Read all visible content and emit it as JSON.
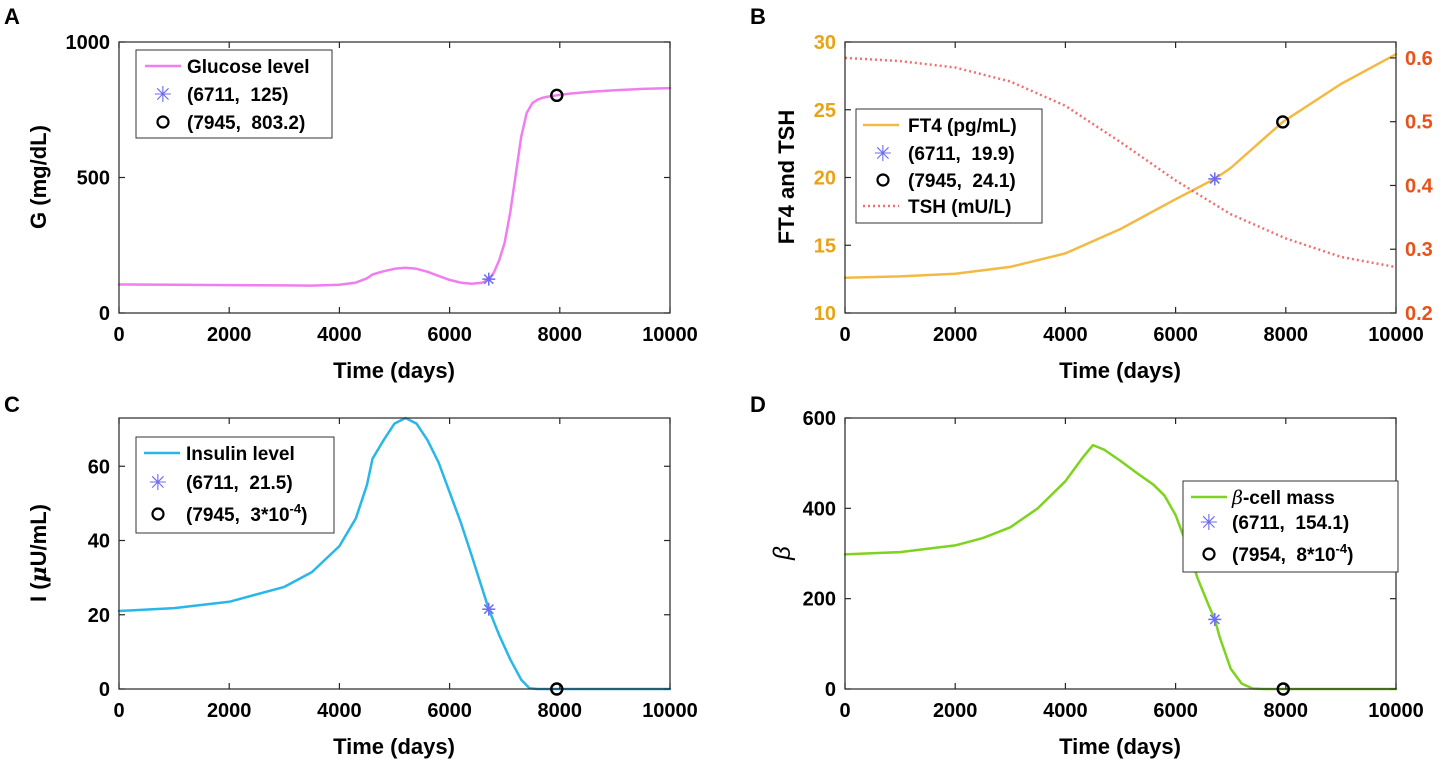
{
  "chart_data": [
    {
      "panel_label": "A",
      "type": "line",
      "xlabel": "Time (days)",
      "ylabel": "G (mg/dL)",
      "xlim": [
        0,
        10000
      ],
      "ylim": [
        0,
        1000
      ],
      "xticks": [
        0,
        2000,
        4000,
        6000,
        8000,
        10000
      ],
      "xtick_labels": [
        "0",
        "2000",
        "4000",
        "6000",
        "8000",
        "10000"
      ],
      "yticks": [
        0,
        500,
        1000
      ],
      "ytick_labels": [
        "0",
        "500",
        "1000"
      ],
      "legend_position": "top-left",
      "series": [
        {
          "name": "Glucose level",
          "color": "#f07ef0",
          "style": "solid",
          "x": [
            0,
            1000,
            2000,
            3000,
            3500,
            4000,
            4300,
            4500,
            4600,
            4800,
            5000,
            5200,
            5400,
            5600,
            5800,
            6000,
            6200,
            6400,
            6600,
            6711,
            6800,
            6900,
            7000,
            7100,
            7200,
            7300,
            7400,
            7500,
            7600,
            7700,
            7800,
            7945,
            8200,
            8600,
            9000,
            9500,
            10000
          ],
          "y": [
            105,
            104,
            103,
            102,
            101,
            104,
            112,
            128,
            142,
            154,
            163,
            167,
            163,
            152,
            137,
            122,
            112,
            108,
            112,
            125,
            148,
            195,
            260,
            370,
            510,
            650,
            738,
            774,
            788,
            795,
            799,
            803.2,
            810,
            817,
            822,
            827,
            830
          ]
        }
      ],
      "markers": [
        {
          "label": "(6711,  125)",
          "x": 6711,
          "y": 125,
          "shape": "asterisk",
          "color": "#6b6bf2"
        },
        {
          "label": "(7945,  803.2)",
          "x": 7945,
          "y": 803.2,
          "shape": "circle",
          "color": "#000000"
        }
      ]
    },
    {
      "panel_label": "B",
      "type": "line",
      "xlabel": "Time (days)",
      "ylabel": "FT4 and TSH",
      "xlim": [
        0,
        10000
      ],
      "ylim": [
        10,
        30
      ],
      "xticks": [
        0,
        2000,
        4000,
        6000,
        8000,
        10000
      ],
      "xtick_labels": [
        "0",
        "2000",
        "4000",
        "6000",
        "8000",
        "10000"
      ],
      "yticks": [
        10,
        15,
        20,
        25,
        30
      ],
      "ytick_labels": [
        "10",
        "15",
        "20",
        "25",
        "30"
      ],
      "ytick_color": "#e8a317",
      "y2lim": [
        0.2,
        0.625
      ],
      "y2ticks": [
        0.2,
        0.3,
        0.4,
        0.5,
        0.6
      ],
      "y2tick_labels": [
        "0.2",
        "0.3",
        "0.4",
        "0.5",
        "0.6"
      ],
      "y2tick_color": "#e8521a",
      "legend_position": "center-left",
      "series": [
        {
          "name": "FT4 (pg/mL)",
          "color": "#f4b942",
          "style": "solid",
          "axis": "left",
          "x": [
            0,
            1000,
            2000,
            3000,
            4000,
            5000,
            6000,
            6711,
            7000,
            7945,
            9000,
            10000
          ],
          "y": [
            12.6,
            12.7,
            12.9,
            13.4,
            14.4,
            16.2,
            18.4,
            19.9,
            20.7,
            24.1,
            26.9,
            29.1
          ]
        },
        {
          "name": "TSH (mU/L)",
          "color": "#f07070",
          "style": "dotted",
          "axis": "right",
          "x": [
            0,
            1000,
            2000,
            3000,
            4000,
            5000,
            6000,
            7000,
            8000,
            9000,
            10000
          ],
          "y": [
            0.6,
            0.595,
            0.585,
            0.563,
            0.525,
            0.468,
            0.408,
            0.355,
            0.317,
            0.288,
            0.272
          ]
        }
      ],
      "markers": [
        {
          "label": "(6711,  19.9)",
          "x": 6711,
          "y": 19.9,
          "shape": "asterisk",
          "color": "#6b6bf2"
        },
        {
          "label": "(7945,  24.1)",
          "x": 7945,
          "y": 24.1,
          "shape": "circle",
          "color": "#000000"
        }
      ]
    },
    {
      "panel_label": "C",
      "type": "line",
      "xlabel": "Time (days)",
      "ylabel_prefix": "I (",
      "ylabel_mu": "μ",
      "ylabel_suffix": "U/mL)",
      "xlim": [
        0,
        10000
      ],
      "ylim": [
        0,
        73
      ],
      "xticks": [
        0,
        2000,
        4000,
        6000,
        8000,
        10000
      ],
      "xtick_labels": [
        "0",
        "2000",
        "4000",
        "6000",
        "8000",
        "10000"
      ],
      "yticks": [
        0,
        20,
        40,
        60
      ],
      "ytick_labels": [
        "0",
        "20",
        "40",
        "60"
      ],
      "legend_position": "top-left",
      "series": [
        {
          "name": "Insulin level",
          "color": "#29b6e8",
          "style": "solid",
          "x": [
            0,
            1000,
            2000,
            3000,
            3500,
            4000,
            4300,
            4500,
            4600,
            4800,
            5000,
            5200,
            5400,
            5600,
            5800,
            6000,
            6200,
            6400,
            6711,
            6900,
            7100,
            7300,
            7450,
            7600,
            8000,
            9000,
            10000
          ],
          "y": [
            21,
            21.8,
            23.5,
            27.5,
            31.5,
            38.5,
            46,
            55,
            62,
            67,
            71.5,
            73,
            71.5,
            67,
            61,
            53,
            45,
            36,
            21.5,
            14.5,
            8,
            2.5,
            0.2,
            0,
            0,
            0,
            0
          ]
        }
      ],
      "markers": [
        {
          "label_prefix": "(6711,  21.5)",
          "x": 6711,
          "y": 21.5,
          "shape": "asterisk",
          "color": "#6b6bf2"
        },
        {
          "label_prefix": "(7945,  3*10",
          "label_exp": "-4",
          "label_suffix": ")",
          "x": 7945,
          "y": 0.0003,
          "shape": "circle",
          "color": "#000000"
        }
      ]
    },
    {
      "panel_label": "D",
      "type": "line",
      "xlabel": "Time (days)",
      "ylabel": "β",
      "xlim": [
        0,
        10000
      ],
      "ylim": [
        0,
        600
      ],
      "xticks": [
        0,
        2000,
        4000,
        6000,
        8000,
        10000
      ],
      "xtick_labels": [
        "0",
        "2000",
        "4000",
        "6000",
        "8000",
        "10000"
      ],
      "yticks": [
        0,
        200,
        400,
        600
      ],
      "ytick_labels": [
        "0",
        "200",
        "400",
        "600"
      ],
      "legend_position": "top-right",
      "series": [
        {
          "name_prefix": "β",
          "name_suffix": "-cell mass",
          "color": "#7ed321",
          "style": "solid",
          "x": [
            0,
            1000,
            2000,
            2500,
            3000,
            3500,
            4000,
            4300,
            4500,
            4700,
            5000,
            5300,
            5600,
            5800,
            6000,
            6200,
            6400,
            6600,
            6711,
            6800,
            6900,
            7000,
            7200,
            7400,
            7600,
            8000,
            9000,
            10000
          ],
          "y": [
            298,
            303,
            318,
            334,
            358,
            400,
            460,
            510,
            540,
            530,
            505,
            478,
            452,
            428,
            385,
            320,
            245,
            185,
            154.1,
            115,
            80,
            45,
            12,
            1,
            0,
            0,
            0,
            0
          ]
        }
      ],
      "markers": [
        {
          "label_prefix": "(6711,  154.1)",
          "x": 6711,
          "y": 154.1,
          "shape": "asterisk",
          "color": "#6b6bf2"
        },
        {
          "label_prefix": "(7954,  8*10",
          "label_exp": "-4",
          "label_suffix": ")",
          "x": 7954,
          "y": 0.0008,
          "shape": "circle",
          "color": "#000000"
        }
      ]
    }
  ]
}
